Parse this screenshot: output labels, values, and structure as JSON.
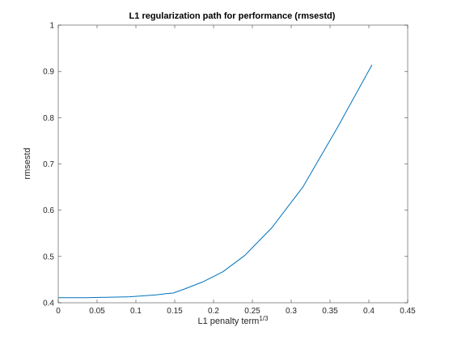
{
  "chart_data": {
    "type": "line",
    "title": "L1 regularization path for performance (rmsestd)",
    "xlabel": "L1 penalty term",
    "xlabel_superscript": "1/3",
    "ylabel": "rmsestd",
    "xlim": [
      0,
      0.45
    ],
    "ylim": [
      0.4,
      1
    ],
    "x_ticks": [
      0,
      0.05,
      0.1,
      0.15,
      0.2,
      0.25,
      0.3,
      0.35,
      0.4,
      0.45
    ],
    "x_tick_labels": [
      "0",
      "0.05",
      "0.1",
      "0.15",
      "0.2",
      "0.25",
      "0.3",
      "0.35",
      "0.4",
      "0.45"
    ],
    "y_ticks": [
      0.4,
      0.5,
      0.6,
      0.7,
      0.8,
      0.9,
      1
    ],
    "y_tick_labels": [
      "0.4",
      "0.5",
      "0.6",
      "0.7",
      "0.8",
      "0.9",
      "1"
    ],
    "grid": false,
    "line_color": "#0072bd",
    "series": [
      {
        "x": [
          0,
          0.036,
          0.068,
          0.092,
          0.11,
          0.126,
          0.14,
          0.148,
          0.163,
          0.186,
          0.212,
          0.24,
          0.275,
          0.315,
          0.36,
          0.404
        ],
        "y": [
          0.411,
          0.411,
          0.412,
          0.413,
          0.415,
          0.417,
          0.42,
          0.421,
          0.43,
          0.445,
          0.467,
          0.502,
          0.562,
          0.65,
          0.78,
          0.914
        ]
      }
    ]
  }
}
